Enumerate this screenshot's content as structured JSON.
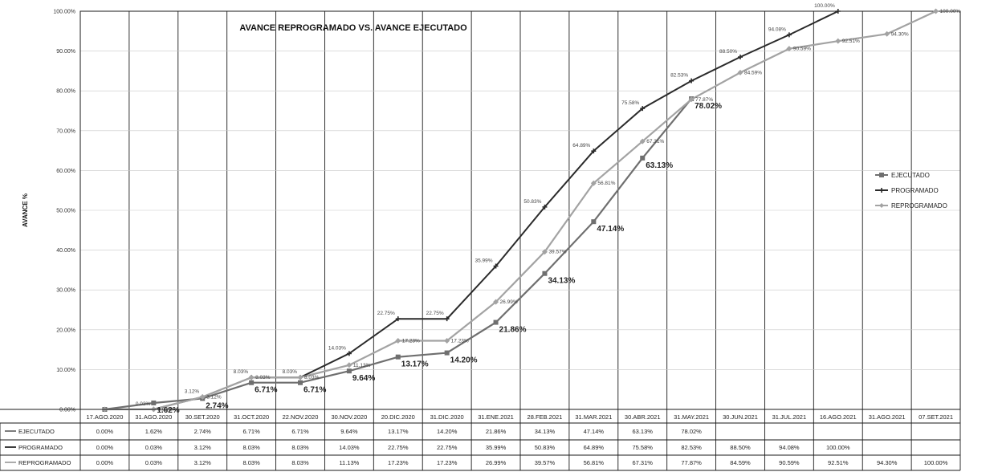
{
  "chart_data": {
    "type": "line",
    "title": "AVANCE REPROGRAMADO VS. AVANCE EJECUTADO",
    "ylabel": "AVANCE %",
    "xlabel": "",
    "ylim": [
      0,
      100
    ],
    "yticks": [
      "0.00%",
      "10.00%",
      "20.00%",
      "30.00%",
      "40.00%",
      "50.00%",
      "60.00%",
      "70.00%",
      "80.00%",
      "90.00%",
      "100.00%"
    ],
    "grid": true,
    "legend_position": "right",
    "categories": [
      "17.AGO.2020",
      "31.AGO.2020",
      "30.SET.2020",
      "31.OCT.2020",
      "22.NOV.2020",
      "30.NOV.2020",
      "20.DIC.2020",
      "31.DIC.2020",
      "31.ENE.2021",
      "28.FEB.2021",
      "31.MAR.2021",
      "30.ABR.2021",
      "31.MAY.2021",
      "30.JUN.2021",
      "31.JUL.2021",
      "16.AGO.2021",
      "31.AGO.2021",
      "07.SET.2021"
    ],
    "series": [
      {
        "name": "EJECUTADO",
        "color": "#6f6f6f",
        "marker": "square",
        "values": [
          0.0,
          1.62,
          2.74,
          6.71,
          6.71,
          9.64,
          13.17,
          14.2,
          21.86,
          34.13,
          47.14,
          63.13,
          78.02,
          null,
          null,
          null,
          null,
          null
        ],
        "labels": [
          "0.00%",
          "1.62%",
          "2.74%",
          "6.71%",
          "6.71%",
          "9.64%",
          "13.17%",
          "14.20%",
          "21.86%",
          "34.13%",
          "47.14%",
          "63.13%",
          "78.02%",
          "",
          "",
          "",
          "",
          ""
        ]
      },
      {
        "name": "PROGRAMADO",
        "color": "#2a2a2a",
        "marker": "plus",
        "values": [
          0.0,
          0.03,
          3.12,
          8.03,
          8.03,
          14.03,
          22.75,
          22.75,
          35.99,
          50.83,
          64.89,
          75.58,
          82.53,
          88.5,
          94.08,
          100.0,
          null,
          null
        ],
        "labels": [
          "0.00%",
          "0.03%",
          "3.12%",
          "8.03%",
          "8.03%",
          "14.03%",
          "22.75%",
          "22.75%",
          "35.99%",
          "50.83%",
          "64.89%",
          "75.58%",
          "82.53%",
          "88.50%",
          "94.08%",
          "100.00%",
          "",
          ""
        ]
      },
      {
        "name": "REPROGRAMADO",
        "color": "#a3a3a3",
        "marker": "diamond",
        "values": [
          0.0,
          0.03,
          3.12,
          8.03,
          8.03,
          11.13,
          17.23,
          17.23,
          26.99,
          39.57,
          56.81,
          67.31,
          77.87,
          84.59,
          90.59,
          92.51,
          94.3,
          100.0
        ],
        "labels": [
          "0.00%",
          "0.03%",
          "3.12%",
          "8.03%",
          "8.03%",
          "11.13%",
          "17.23%",
          "17.23%",
          "26.99%",
          "39.57%",
          "56.81%",
          "67.31%",
          "77.87%",
          "84.59%",
          "90.59%",
          "92.51%",
          "94.30%",
          "100.00%"
        ]
      }
    ]
  }
}
